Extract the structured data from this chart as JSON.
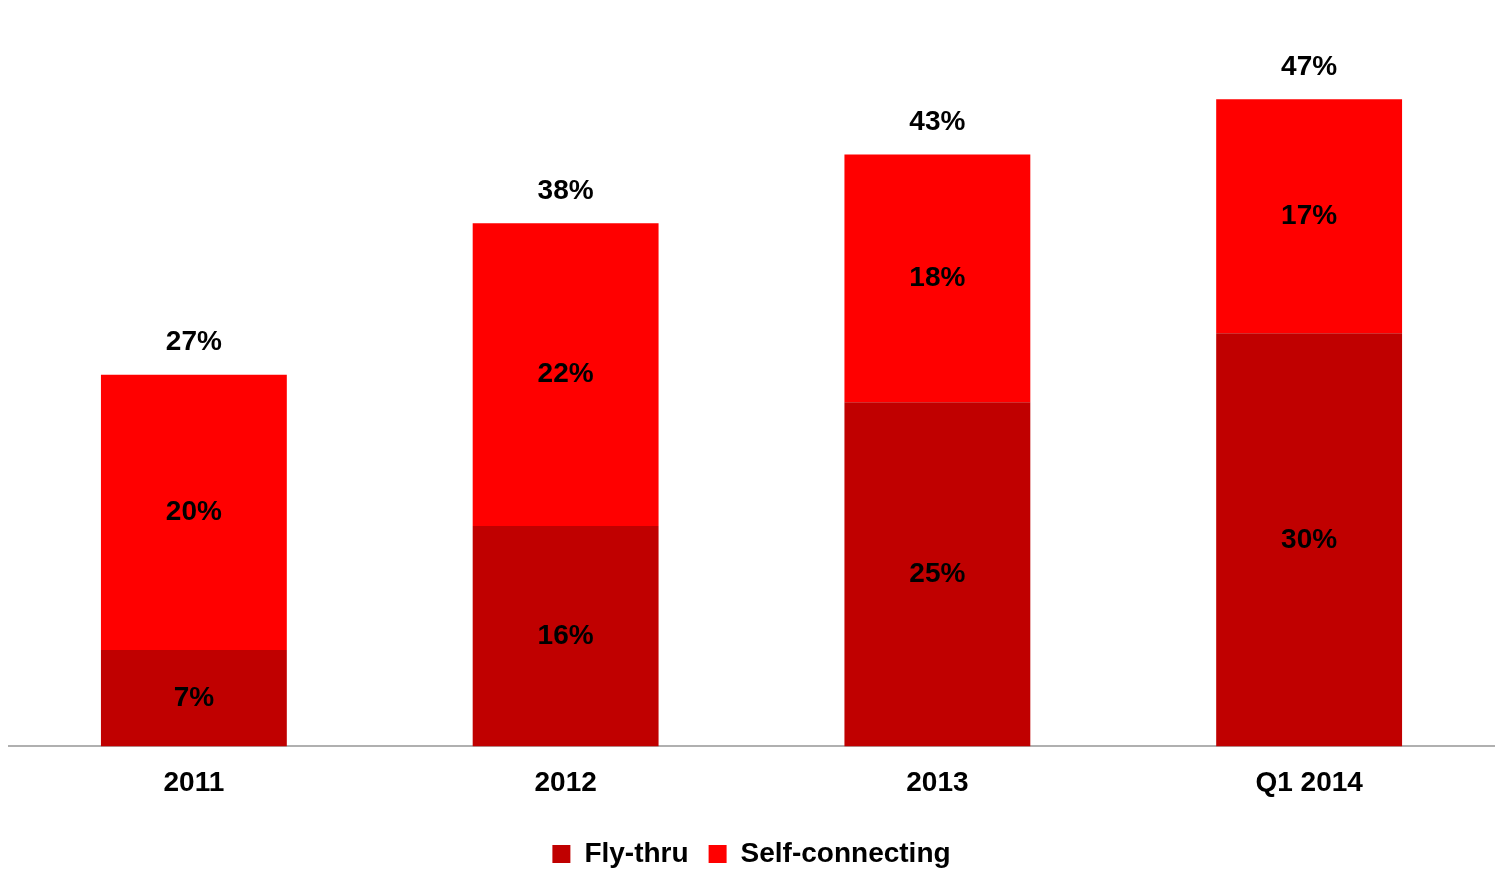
{
  "chart_data": {
    "type": "bar",
    "stacked": true,
    "categories": [
      "2011",
      "2012",
      "2013",
      "Q1 2014"
    ],
    "series": [
      {
        "name": "Fly-thru",
        "color": "#c00000",
        "values": [
          7,
          16,
          25,
          30
        ],
        "value_labels": [
          "7%",
          "16%",
          "25%",
          "30%"
        ]
      },
      {
        "name": "Self-connecting",
        "color": "#ff0000",
        "values": [
          20,
          22,
          18,
          17
        ],
        "value_labels": [
          "20%",
          "22%",
          "18%",
          "17%"
        ]
      }
    ],
    "totals": [
      "27%",
      "38%",
      "43%",
      "47%"
    ],
    "grid": false,
    "legend": "bottom"
  }
}
